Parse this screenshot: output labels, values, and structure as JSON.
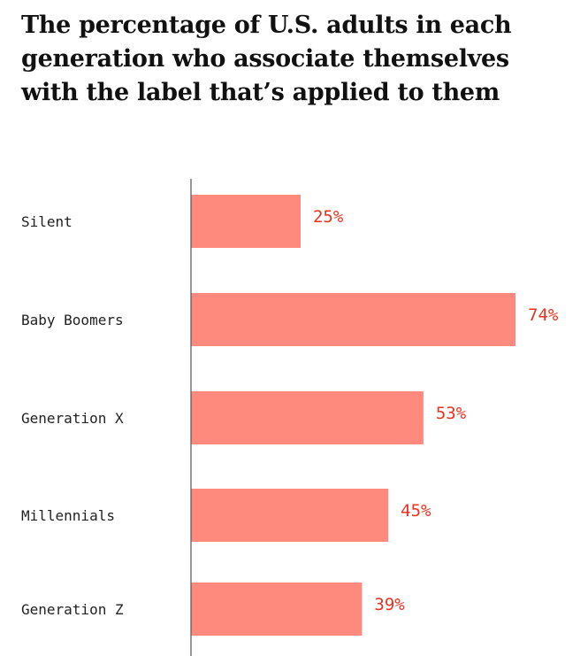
{
  "title": "The percentage of U.S. adults in each generation who associate themselves with the label that’s applied to them",
  "colors": {
    "bar": "#fe8a7e",
    "value_label": "#e8321f",
    "category_label": "#222222",
    "axis": "#555555"
  },
  "chart_data": {
    "type": "bar",
    "orientation": "horizontal",
    "title": "The percentage of U.S. adults in each generation who associate themselves with the label that’s applied to them",
    "categories": [
      "Silent",
      "Baby Boomers",
      "Generation X",
      "Millennials",
      "Generation Z"
    ],
    "values": [
      25,
      74,
      53,
      45,
      39
    ],
    "data_labels": [
      "25%",
      "74%",
      "53%",
      "45%",
      "39%"
    ],
    "xlabel": "",
    "ylabel": "",
    "xlim": [
      0,
      74
    ],
    "grid": false,
    "legend": "none"
  }
}
